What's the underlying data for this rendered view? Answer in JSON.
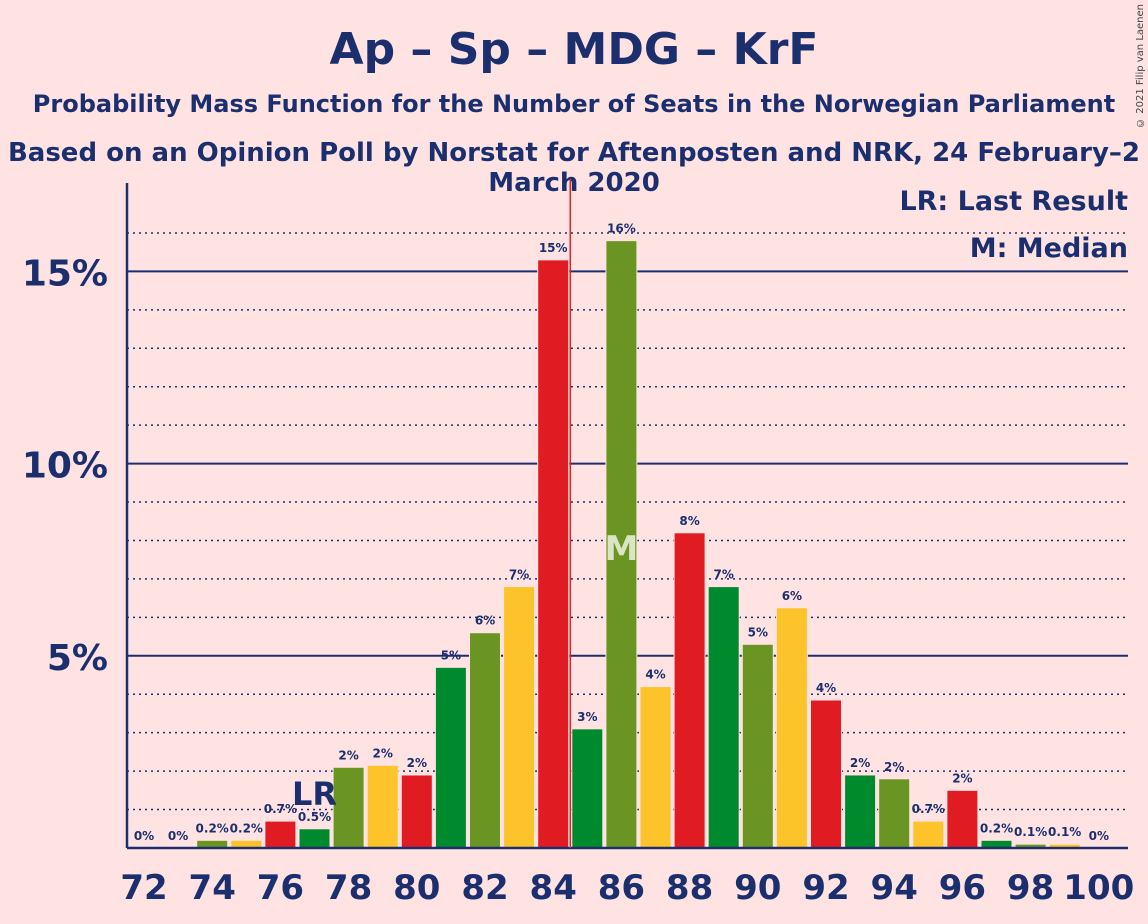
{
  "title": "Ap – Sp – MDG – KrF",
  "subtitle": "Probability Mass Function for the Number of Seats in the Norwegian Parliament",
  "subtitle2": "Based on an Opinion Poll by Norstat for Aftenposten and NRK, 24 February–2 March 2020",
  "copyright": "© 2021 Filip van Laenen",
  "legend": {
    "last_result": "LR: Last Result",
    "median": "M: Median"
  },
  "markers": {
    "last_result_label": "LR",
    "median_label": "M"
  },
  "colors": {
    "background": "#ffe3e3",
    "text": "#1b2f6e",
    "majority_line": "#e8202a"
  },
  "chart_data": {
    "type": "bar",
    "xlabel": "",
    "ylabel": "",
    "ylim": [
      0,
      17.3
    ],
    "y_ticks": [
      {
        "value": 5,
        "label": "5%"
      },
      {
        "value": 10,
        "label": "10%"
      },
      {
        "value": 15,
        "label": "15%"
      }
    ],
    "x_ticks": [
      72,
      74,
      76,
      78,
      80,
      82,
      84,
      86,
      88,
      90,
      92,
      94,
      96,
      98,
      100
    ],
    "majority_line_x": 84.5,
    "last_result_x": 77,
    "median_x": 86,
    "bars": [
      {
        "x": 72,
        "value": 0,
        "label": "0%",
        "color": "#e01b22"
      },
      {
        "x": 73,
        "value": 0,
        "label": "0%",
        "color": "#008a2e"
      },
      {
        "x": 74,
        "value": 0.2,
        "label": "0.2%",
        "color": "#6b9523"
      },
      {
        "x": 75,
        "value": 0.2,
        "label": "0.2%",
        "color": "#fdc32a"
      },
      {
        "x": 76,
        "value": 0.7,
        "label": "0.7%",
        "color": "#e01b22"
      },
      {
        "x": 77,
        "value": 0.5,
        "label": "0.5%",
        "color": "#008a2e"
      },
      {
        "x": 78,
        "value": 2.1,
        "label": "2%",
        "color": "#6b9523"
      },
      {
        "x": 79,
        "value": 2.15,
        "label": "2%",
        "color": "#fdc32a"
      },
      {
        "x": 80,
        "value": 1.9,
        "label": "2%",
        "color": "#e01b22"
      },
      {
        "x": 81,
        "value": 4.7,
        "label": "5%",
        "color": "#008a2e"
      },
      {
        "x": 82,
        "value": 5.6,
        "label": "6%",
        "color": "#6b9523"
      },
      {
        "x": 83,
        "value": 6.8,
        "label": "7%",
        "color": "#fdc32a"
      },
      {
        "x": 84,
        "value": 15.3,
        "label": "15%",
        "color": "#e01b22"
      },
      {
        "x": 85,
        "value": 3.1,
        "label": "3%",
        "color": "#008a2e"
      },
      {
        "x": 86,
        "value": 15.8,
        "label": "16%",
        "color": "#6b9523"
      },
      {
        "x": 87,
        "value": 4.2,
        "label": "4%",
        "color": "#fdc32a"
      },
      {
        "x": 88,
        "value": 8.2,
        "label": "8%",
        "color": "#e01b22"
      },
      {
        "x": 89,
        "value": 6.8,
        "label": "7%",
        "color": "#008a2e"
      },
      {
        "x": 90,
        "value": 5.3,
        "label": "5%",
        "color": "#6b9523"
      },
      {
        "x": 91,
        "value": 6.25,
        "label": "6%",
        "color": "#fdc32a"
      },
      {
        "x": 92,
        "value": 3.85,
        "label": "4%",
        "color": "#e01b22"
      },
      {
        "x": 93,
        "value": 1.9,
        "label": "2%",
        "color": "#008a2e"
      },
      {
        "x": 94,
        "value": 1.8,
        "label": "2%",
        "color": "#6b9523"
      },
      {
        "x": 95,
        "value": 0.7,
        "label": "0.7%",
        "color": "#fdc32a"
      },
      {
        "x": 96,
        "value": 1.5,
        "label": "2%",
        "color": "#e01b22"
      },
      {
        "x": 97,
        "value": 0.2,
        "label": "0.2%",
        "color": "#008a2e"
      },
      {
        "x": 98,
        "value": 0.1,
        "label": "0.1%",
        "color": "#6b9523"
      },
      {
        "x": 99,
        "value": 0.1,
        "label": "0.1%",
        "color": "#fdc32a"
      },
      {
        "x": 100,
        "value": 0,
        "label": "0%",
        "color": "#e01b22"
      }
    ]
  }
}
